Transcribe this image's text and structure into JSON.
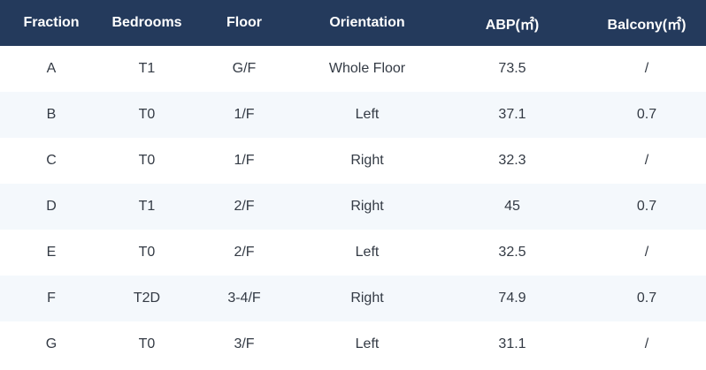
{
  "table": {
    "headers": [
      "Fraction",
      "Bedrooms",
      "Floor",
      "Orientation",
      "ABP(㎡)",
      "Balcony(㎡)"
    ],
    "rows": [
      [
        "A",
        "T1",
        "G/F",
        "Whole Floor",
        "73.5",
        "/"
      ],
      [
        "B",
        "T0",
        "1/F",
        "Left",
        "37.1",
        "0.7"
      ],
      [
        "C",
        "T0",
        "1/F",
        "Right",
        "32.3",
        "/"
      ],
      [
        "D",
        "T1",
        "2/F",
        "Right",
        "45",
        "0.7"
      ],
      [
        "E",
        "T0",
        "2/F",
        "Left",
        "32.5",
        "/"
      ],
      [
        "F",
        "T2D",
        "3-4/F",
        "Right",
        "74.9",
        "0.7"
      ],
      [
        "G",
        "T0",
        "3/F",
        "Left",
        "31.1",
        "/"
      ]
    ]
  }
}
